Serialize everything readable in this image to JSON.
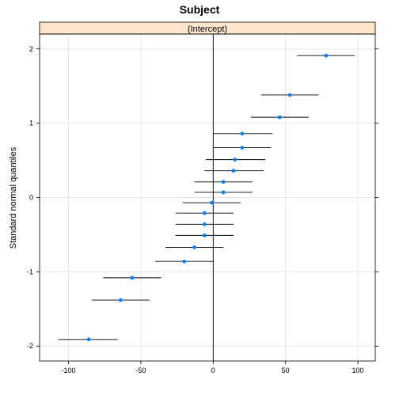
{
  "chart_data": {
    "type": "scatter",
    "title": "Subject",
    "strip_label": "(Intercept)",
    "ylabel": "Standard normal quantiles",
    "xlabel": "",
    "xlim": [
      -120,
      112
    ],
    "ylim": [
      -2.2,
      2.2
    ],
    "x_ticks": [
      -100,
      -50,
      0,
      50,
      100
    ],
    "x_tick_labels": [
      "-100",
      "-50",
      "0",
      "50",
      "100"
    ],
    "y_ticks": [
      -2,
      -1,
      0,
      1,
      2
    ],
    "y_tick_labels": [
      "-2",
      "-1",
      "0",
      "1",
      "2"
    ],
    "reference_line_x": 0,
    "grid": true,
    "colors": {
      "strip_fill": "#ffe5cc",
      "point": "#0080ff",
      "interval": "#000000",
      "grid": "#e6e6e6"
    },
    "points": [
      {
        "x": 78,
        "y": 1.91,
        "lower": 58,
        "upper": 98
      },
      {
        "x": 53,
        "y": 1.38,
        "lower": 33,
        "upper": 73
      },
      {
        "x": 46,
        "y": 1.08,
        "lower": 26,
        "upper": 66
      },
      {
        "x": 20,
        "y": 0.86,
        "lower": 0,
        "upper": 41
      },
      {
        "x": 20,
        "y": 0.67,
        "lower": 0,
        "upper": 40
      },
      {
        "x": 15,
        "y": 0.51,
        "lower": -5,
        "upper": 36
      },
      {
        "x": 14,
        "y": 0.36,
        "lower": -6,
        "upper": 35
      },
      {
        "x": 7,
        "y": 0.21,
        "lower": -13,
        "upper": 27
      },
      {
        "x": 7,
        "y": 0.07,
        "lower": -13,
        "upper": 27
      },
      {
        "x": -1,
        "y": -0.07,
        "lower": -21,
        "upper": 19
      },
      {
        "x": -6,
        "y": -0.21,
        "lower": -26,
        "upper": 14
      },
      {
        "x": -6,
        "y": -0.36,
        "lower": -26,
        "upper": 14
      },
      {
        "x": -6,
        "y": -0.51,
        "lower": -26,
        "upper": 14
      },
      {
        "x": -13,
        "y": -0.67,
        "lower": -33,
        "upper": 7
      },
      {
        "x": -20,
        "y": -0.86,
        "lower": -40,
        "upper": 0
      },
      {
        "x": -56,
        "y": -1.08,
        "lower": -76,
        "upper": -36
      },
      {
        "x": -64,
        "y": -1.38,
        "lower": -84,
        "upper": -44
      },
      {
        "x": -86,
        "y": -1.91,
        "lower": -107,
        "upper": -66
      }
    ]
  }
}
